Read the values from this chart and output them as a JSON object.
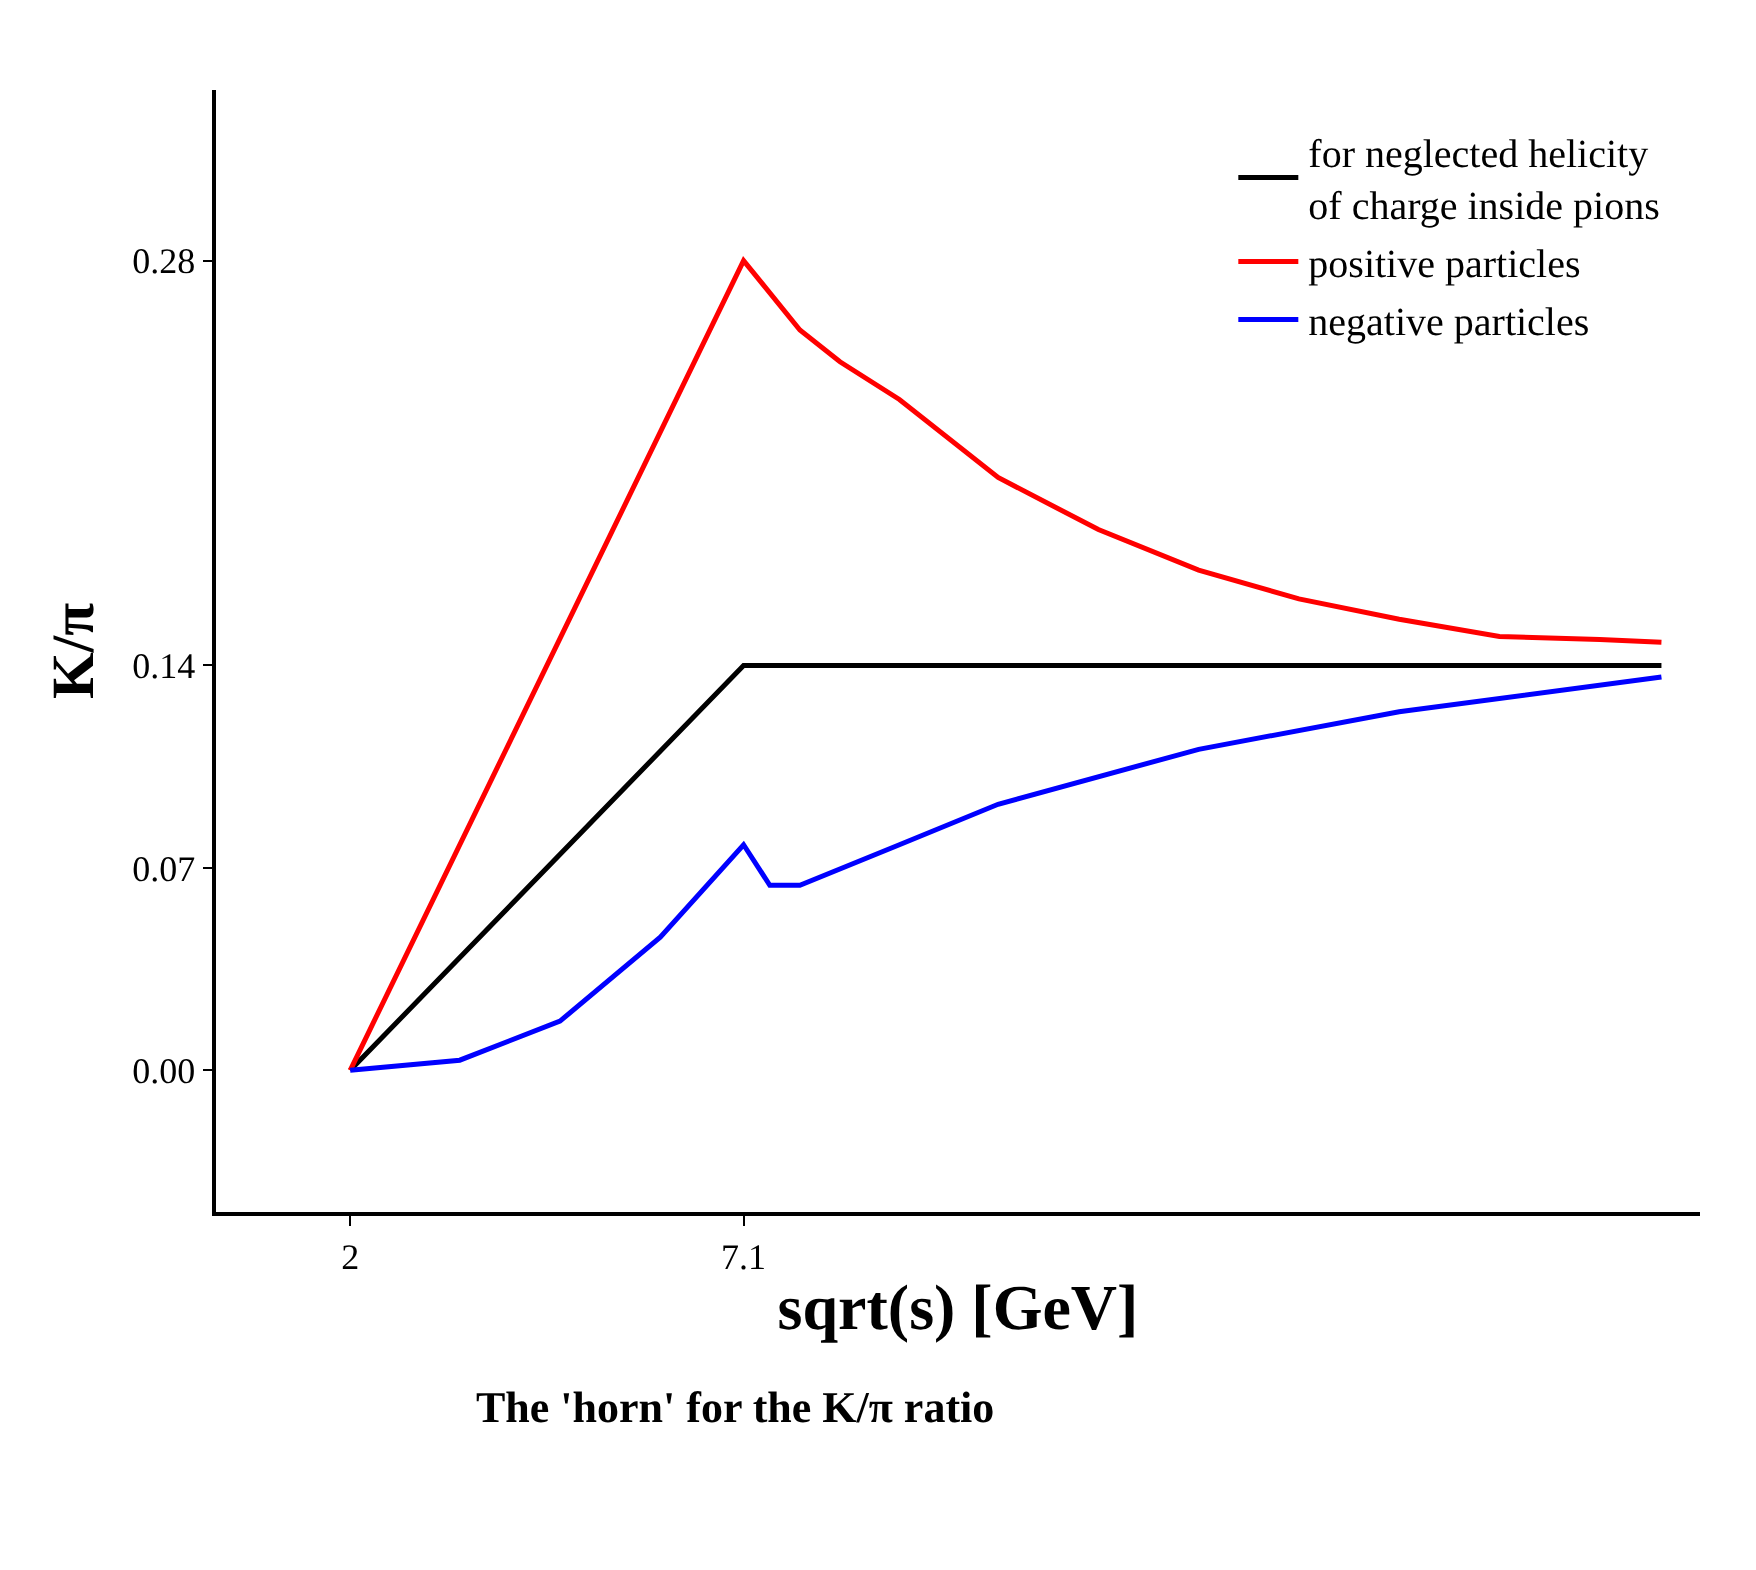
{
  "chart_data": {
    "type": "line",
    "xlabel": "sqrt(s) [GeV]",
    "ylabel": "K/π",
    "xlim": [
      0.26,
      19.5
    ],
    "ylim": [
      -0.049,
      0.339
    ],
    "xticks": [
      2,
      7.1
    ],
    "yticks": [
      {
        "value": 0,
        "label": "0.00"
      },
      0.07,
      0.14,
      0.28
    ],
    "legend": "top right",
    "marker": "none",
    "line_style": "solid",
    "series": [
      {
        "name": "for neglected helicity of charge inside pions",
        "color": "#000000",
        "x": [
          2,
          7.1,
          19.0
        ],
        "values": [
          0,
          0.14,
          0.14
        ]
      },
      {
        "name": "positive particles",
        "color": "#ff0000",
        "x": [
          2,
          7.1,
          7.83,
          8.35,
          9.12,
          10.4,
          11.7,
          13.0,
          14.3,
          15.6,
          16.9,
          18.2,
          19.0
        ],
        "values": [
          0,
          0.28,
          0.256,
          0.245,
          0.232,
          0.205,
          0.187,
          0.173,
          0.163,
          0.156,
          0.15,
          0.149,
          0.148
        ]
      },
      {
        "name": "negative particles",
        "color": "#0000ff",
        "x": [
          2,
          3.42,
          4.72,
          6.02,
          7.1,
          7.44,
          7.83,
          9.12,
          10.4,
          13.0,
          15.6,
          19.0
        ],
        "values": [
          0,
          0.0035,
          0.017,
          0.046,
          0.078,
          0.064,
          0.064,
          0.078,
          0.092,
          0.111,
          0.124,
          0.136
        ]
      }
    ],
    "annotations": [
      "The 'horn' for the K/π ratio"
    ]
  }
}
